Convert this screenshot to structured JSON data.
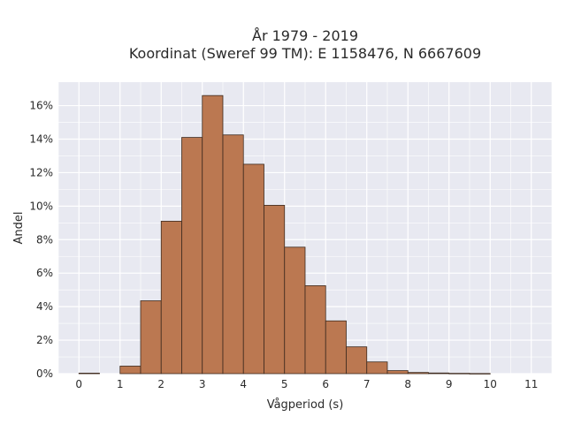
{
  "chart_data": {
    "type": "bar",
    "title_line1": "År 1979 - 2019",
    "title_line2": "Koordinat (Sweref 99 TM): E 1158476, N 6667609",
    "xlabel": "Vågperiod (s)",
    "ylabel": "Andel",
    "bin_width": 0.5,
    "bin_starts": [
      0,
      0.5,
      1,
      1.5,
      2,
      2.5,
      3,
      3.5,
      4,
      4.5,
      5,
      5.5,
      6,
      6.5,
      7,
      7.5,
      8,
      8.5,
      9,
      9.5,
      10,
      10.5
    ],
    "values": [
      0.0003,
      0.0,
      0.0045,
      0.0435,
      0.091,
      0.141,
      0.166,
      0.1425,
      0.125,
      0.1005,
      0.0755,
      0.0525,
      0.0315,
      0.016,
      0.007,
      0.0018,
      0.0007,
      0.0004,
      0.0002,
      0.0001,
      0.0,
      0.0
    ],
    "xlim": [
      -0.5,
      11.5
    ],
    "ylim": [
      0,
      0.174
    ],
    "x_ticks": [
      0,
      1,
      2,
      3,
      4,
      5,
      6,
      7,
      8,
      9,
      10,
      11
    ],
    "x_tick_labels": [
      "0",
      "1",
      "2",
      "3",
      "4",
      "5",
      "6",
      "7",
      "8",
      "9",
      "10",
      "11"
    ],
    "y_ticks": [
      0,
      0.02,
      0.04,
      0.06,
      0.08,
      0.1,
      0.12,
      0.14,
      0.16
    ],
    "y_tick_labels": [
      "0%",
      "2%",
      "4%",
      "6%",
      "8%",
      "10%",
      "12%",
      "14%",
      "16%"
    ],
    "grid": true,
    "colors": {
      "bar_fill": "#bb7851",
      "bar_edge": "#3d2a1e",
      "plot_bg": "#e8e9f1",
      "grid": "#ffffff"
    }
  }
}
